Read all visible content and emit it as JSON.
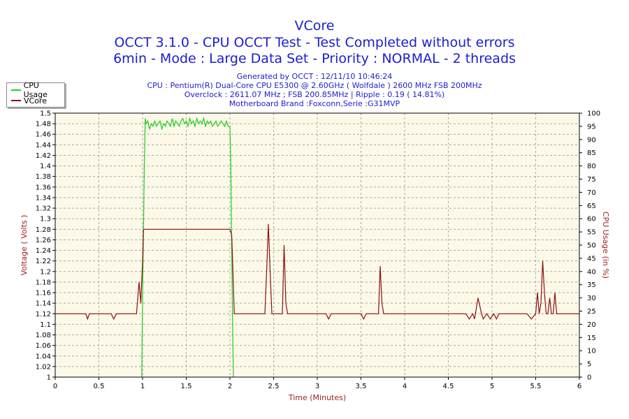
{
  "chart_data": {
    "type": "line",
    "title": "VCore",
    "subtitle_lines": [
      "OCCT 3.1.0 - CPU OCCT Test - Test Completed without errors",
      "6min - Mode : Large Data Set - Priority : NORMAL - 2 threads"
    ],
    "info_lines": [
      "Generated by OCCT : 12/11/10 10:46:24",
      "CPU : Pentium(R) Dual-Core CPU E5300 @ 2.60GHz ( Wolfdale ) 2600 MHz FSB 200MHz",
      "Overclock : 2611.07 MHz ; FSB 200.85MHz | Ripple : 0.19 ( 14.81%)",
      "Motherboard Brand :Foxconn,Serie :G31MVP"
    ],
    "xlabel": "Time (Minutes)",
    "ylabel_left": "Voltage ( Volts )",
    "ylabel_right": "CPU Usage (in %)",
    "xlim": [
      0,
      6
    ],
    "ylim_left": [
      1,
      1.5
    ],
    "ylim_right": [
      0,
      100
    ],
    "x_ticks": [
      "0",
      "0.5",
      "1",
      "1.5",
      "2",
      "2.5",
      "3",
      "3.5",
      "4",
      "4.5",
      "5",
      "5.5",
      "6"
    ],
    "y_left_ticks": [
      "1",
      "1.02",
      "1.04",
      "1.06",
      "1.08",
      "1.1",
      "1.12",
      "1.14",
      "1.16",
      "1.18",
      "1.2",
      "1.22",
      "1.24",
      "1.26",
      "1.28",
      "1.3",
      "1.32",
      "1.34",
      "1.36",
      "1.38",
      "1.4",
      "1.42",
      "1.44",
      "1.46",
      "1.48",
      "1.5"
    ],
    "y_right_ticks": [
      "0",
      "5",
      "10",
      "15",
      "20",
      "25",
      "30",
      "35",
      "40",
      "45",
      "50",
      "55",
      "60",
      "65",
      "70",
      "75",
      "80",
      "85",
      "90",
      "95",
      "100"
    ],
    "grid": true,
    "legend_position": "top-left",
    "colors": {
      "cpu": "#22cc22",
      "vcore": "#8b1010",
      "plot_bg": "#fcf9e8",
      "grid": "#a8a8a8"
    },
    "series": [
      {
        "name": "CPU Usage",
        "axis": "right",
        "x": [
          0.99,
          1.0,
          1.02,
          1.03,
          1.04,
          1.06,
          1.08,
          1.1,
          1.12,
          1.14,
          1.16,
          1.18,
          1.2,
          1.22,
          1.24,
          1.26,
          1.28,
          1.3,
          1.32,
          1.34,
          1.36,
          1.38,
          1.4,
          1.42,
          1.44,
          1.46,
          1.48,
          1.5,
          1.52,
          1.54,
          1.56,
          1.58,
          1.6,
          1.62,
          1.64,
          1.66,
          1.68,
          1.7,
          1.72,
          1.74,
          1.76,
          1.78,
          1.8,
          1.82,
          1.84,
          1.86,
          1.88,
          1.9,
          1.92,
          1.94,
          1.96,
          1.98,
          2.0,
          2.01,
          2.02,
          2.03,
          2.04
        ],
        "values": [
          0,
          30,
          80,
          98,
          96,
          97,
          94,
          96,
          95,
          97,
          95,
          96,
          97,
          94,
          96,
          95,
          97,
          96,
          95,
          98,
          95,
          97,
          96,
          95,
          97,
          98,
          96,
          97,
          95,
          98,
          96,
          97,
          95,
          98,
          96,
          97,
          96,
          98,
          95,
          97,
          96,
          97,
          95,
          96,
          97,
          95,
          96,
          97,
          96,
          95,
          97,
          95,
          95,
          80,
          50,
          20,
          0
        ]
      },
      {
        "name": "VCore",
        "axis": "left",
        "x": [
          0,
          0.35,
          0.37,
          0.39,
          0.42,
          0.64,
          0.67,
          0.7,
          0.73,
          0.93,
          0.96,
          0.98,
          1.0,
          1.01,
          1.03,
          1.04,
          1.05,
          2.0,
          2.02,
          2.03,
          2.05,
          2.07,
          2.4,
          2.42,
          2.44,
          2.46,
          2.48,
          2.6,
          2.62,
          2.64,
          2.66,
          3.1,
          3.13,
          3.16,
          3.5,
          3.53,
          3.56,
          3.7,
          3.72,
          3.74,
          3.76,
          4.7,
          4.74,
          4.78,
          4.8,
          4.84,
          4.88,
          4.9,
          4.94,
          4.98,
          5.02,
          5.05,
          5.08,
          5.12,
          5.15,
          5.4,
          5.45,
          5.5,
          5.52,
          5.54,
          5.56,
          5.58,
          5.6,
          5.62,
          5.64,
          5.66,
          5.68,
          5.7,
          5.72,
          5.74,
          5.76,
          5.78,
          5.8,
          5.82,
          5.84,
          5.86,
          6.0
        ],
        "values": [
          1.12,
          1.12,
          1.11,
          1.12,
          1.12,
          1.12,
          1.11,
          1.12,
          1.12,
          1.12,
          1.18,
          1.14,
          1.22,
          1.28,
          1.28,
          1.28,
          1.28,
          1.28,
          1.27,
          1.22,
          1.12,
          1.12,
          1.12,
          1.2,
          1.29,
          1.2,
          1.12,
          1.12,
          1.25,
          1.14,
          1.12,
          1.12,
          1.11,
          1.12,
          1.12,
          1.11,
          1.12,
          1.12,
          1.21,
          1.14,
          1.12,
          1.12,
          1.11,
          1.12,
          1.11,
          1.15,
          1.12,
          1.11,
          1.12,
          1.11,
          1.12,
          1.11,
          1.12,
          1.12,
          1.12,
          1.12,
          1.11,
          1.12,
          1.16,
          1.12,
          1.14,
          1.22,
          1.16,
          1.12,
          1.12,
          1.15,
          1.12,
          1.12,
          1.16,
          1.12,
          1.12,
          1.12,
          1.12,
          1.12,
          1.12,
          1.12,
          1.12
        ]
      }
    ]
  }
}
